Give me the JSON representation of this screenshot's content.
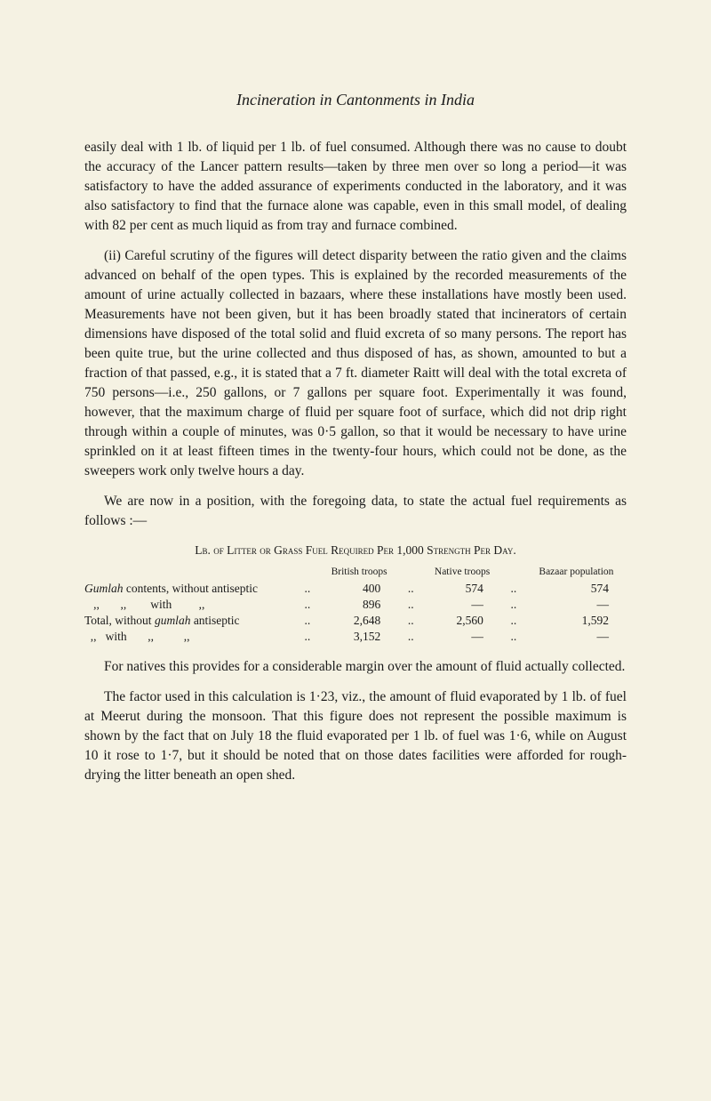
{
  "title": "Incineration in Cantonments in India",
  "paragraphs": {
    "p1": "easily deal with 1 lb. of liquid per 1 lb. of fuel consumed. Although there was no cause to doubt the accuracy of the Lancer pattern results—taken by three men over so long a period—it was satisfactory to have the added assurance of experiments conducted in the laboratory, and it was also satisfactory to find that the furnace alone was capable, even in this small model, of dealing with 82 per cent as much liquid as from tray and furnace combined.",
    "p2_pre": "(ii) Careful scrutiny of the figures will detect disparity between the ratio given and the claims advanced on behalf of the open types. This is explained by the recorded measurements of the amount of urine actually collected in bazaars, where these installations have mostly been used. Measurements have not been given, but it has been broadly stated that incinerators of certain dimensions have disposed of the total solid and fluid excreta of so many persons. The report has been quite true, but the urine collected and thus disposed of has, as shown, amounted to but a fraction of that passed, e.g., it is stated that a 7 ft. diameter Raitt will deal with the total excreta of 750 persons—i.e., 250 gallons, or 7 gallons per square foot. Experimentally it was found, however, that the maximum charge of fluid per square foot of surface, which did not drip right through within a couple of minutes, was 0·5 gallon, so that it would be necessary to have urine sprinkled on it at least fifteen times in the twenty-four hours, which could not be done, as the sweepers work only twelve hours a day.",
    "p3": "We are now in a position, with the foregoing data, to state the actual fuel requirements as follows :—",
    "p4": "For natives this provides for a considerable margin over the amount of fluid actually collected.",
    "p5": "The factor used in this calculation is 1·23, viz., the amount of fluid evaporated by 1 lb. of fuel at Meerut during the monsoon. That this figure does not represent the possible maximum is shown by the fact that on July 18 the fluid evaporated per 1 lb. of fuel was 1·6, while on August 10 it rose to 1·7, but it should be noted that on those dates facilities were afforded for rough-drying the litter beneath an open shed."
  },
  "table": {
    "caption": "Lb. of Litter or Grass Fuel Required Per 1,000 Strength Per Day.",
    "headers": {
      "col1": "",
      "col2": "British troops",
      "col3": "Native troops",
      "col4": "Bazaar population"
    },
    "rows": [
      {
        "label_prefix": "",
        "label_italic": "Gumlah",
        "label_suffix": " contents, without antiseptic",
        "dots1": "..",
        "v1": "400",
        "dots2": "..",
        "v2": "574",
        "dots3": "..",
        "v3": "574"
      },
      {
        "label_prefix": "   ,,       ,,        with         ,,",
        "label_italic": "",
        "label_suffix": "",
        "dots1": "..",
        "v1": "896",
        "dots2": "..",
        "v2": "—",
        "dots3": "..",
        "v3": "—"
      },
      {
        "label_prefix": "Total, without ",
        "label_italic": "gumlah",
        "label_suffix": " antiseptic",
        "dots1": "..",
        "v1": "2,648",
        "dots2": "..",
        "v2": "2,560",
        "dots3": "..",
        "v3": "1,592"
      },
      {
        "label_prefix": "  ,,   with       ,,          ,,",
        "label_italic": "",
        "label_suffix": "",
        "dots1": "..",
        "v1": "3,152",
        "dots2": "..",
        "v2": "—",
        "dots3": "..",
        "v3": "—"
      }
    ]
  }
}
